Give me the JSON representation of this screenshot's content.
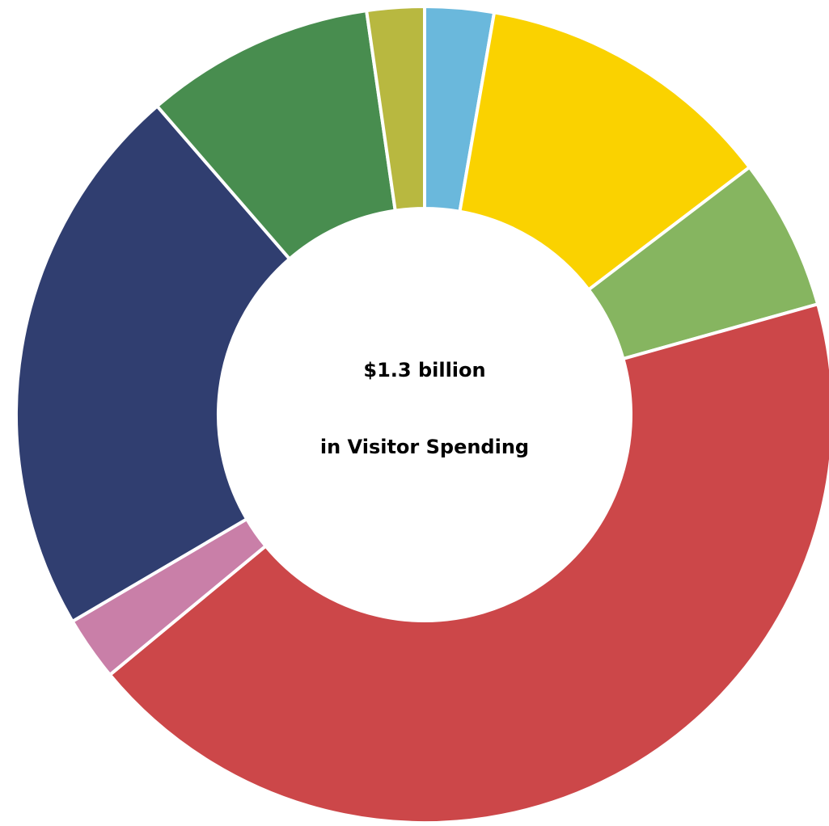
{
  "chart_data": {
    "type": "pie",
    "center_text": {
      "line1": "$1.3 billion",
      "line2": "in Visitor Spending"
    },
    "values": [
      3.0,
      13.1,
      6.6,
      47.7,
      2.8,
      24.3,
      10.0,
      2.5
    ],
    "colors": [
      "#6ab8dc",
      "#fad200",
      "#86b560",
      "#cc4749",
      "#c97fa8",
      "#303e70",
      "#488d4f",
      "#b8b840"
    ]
  }
}
